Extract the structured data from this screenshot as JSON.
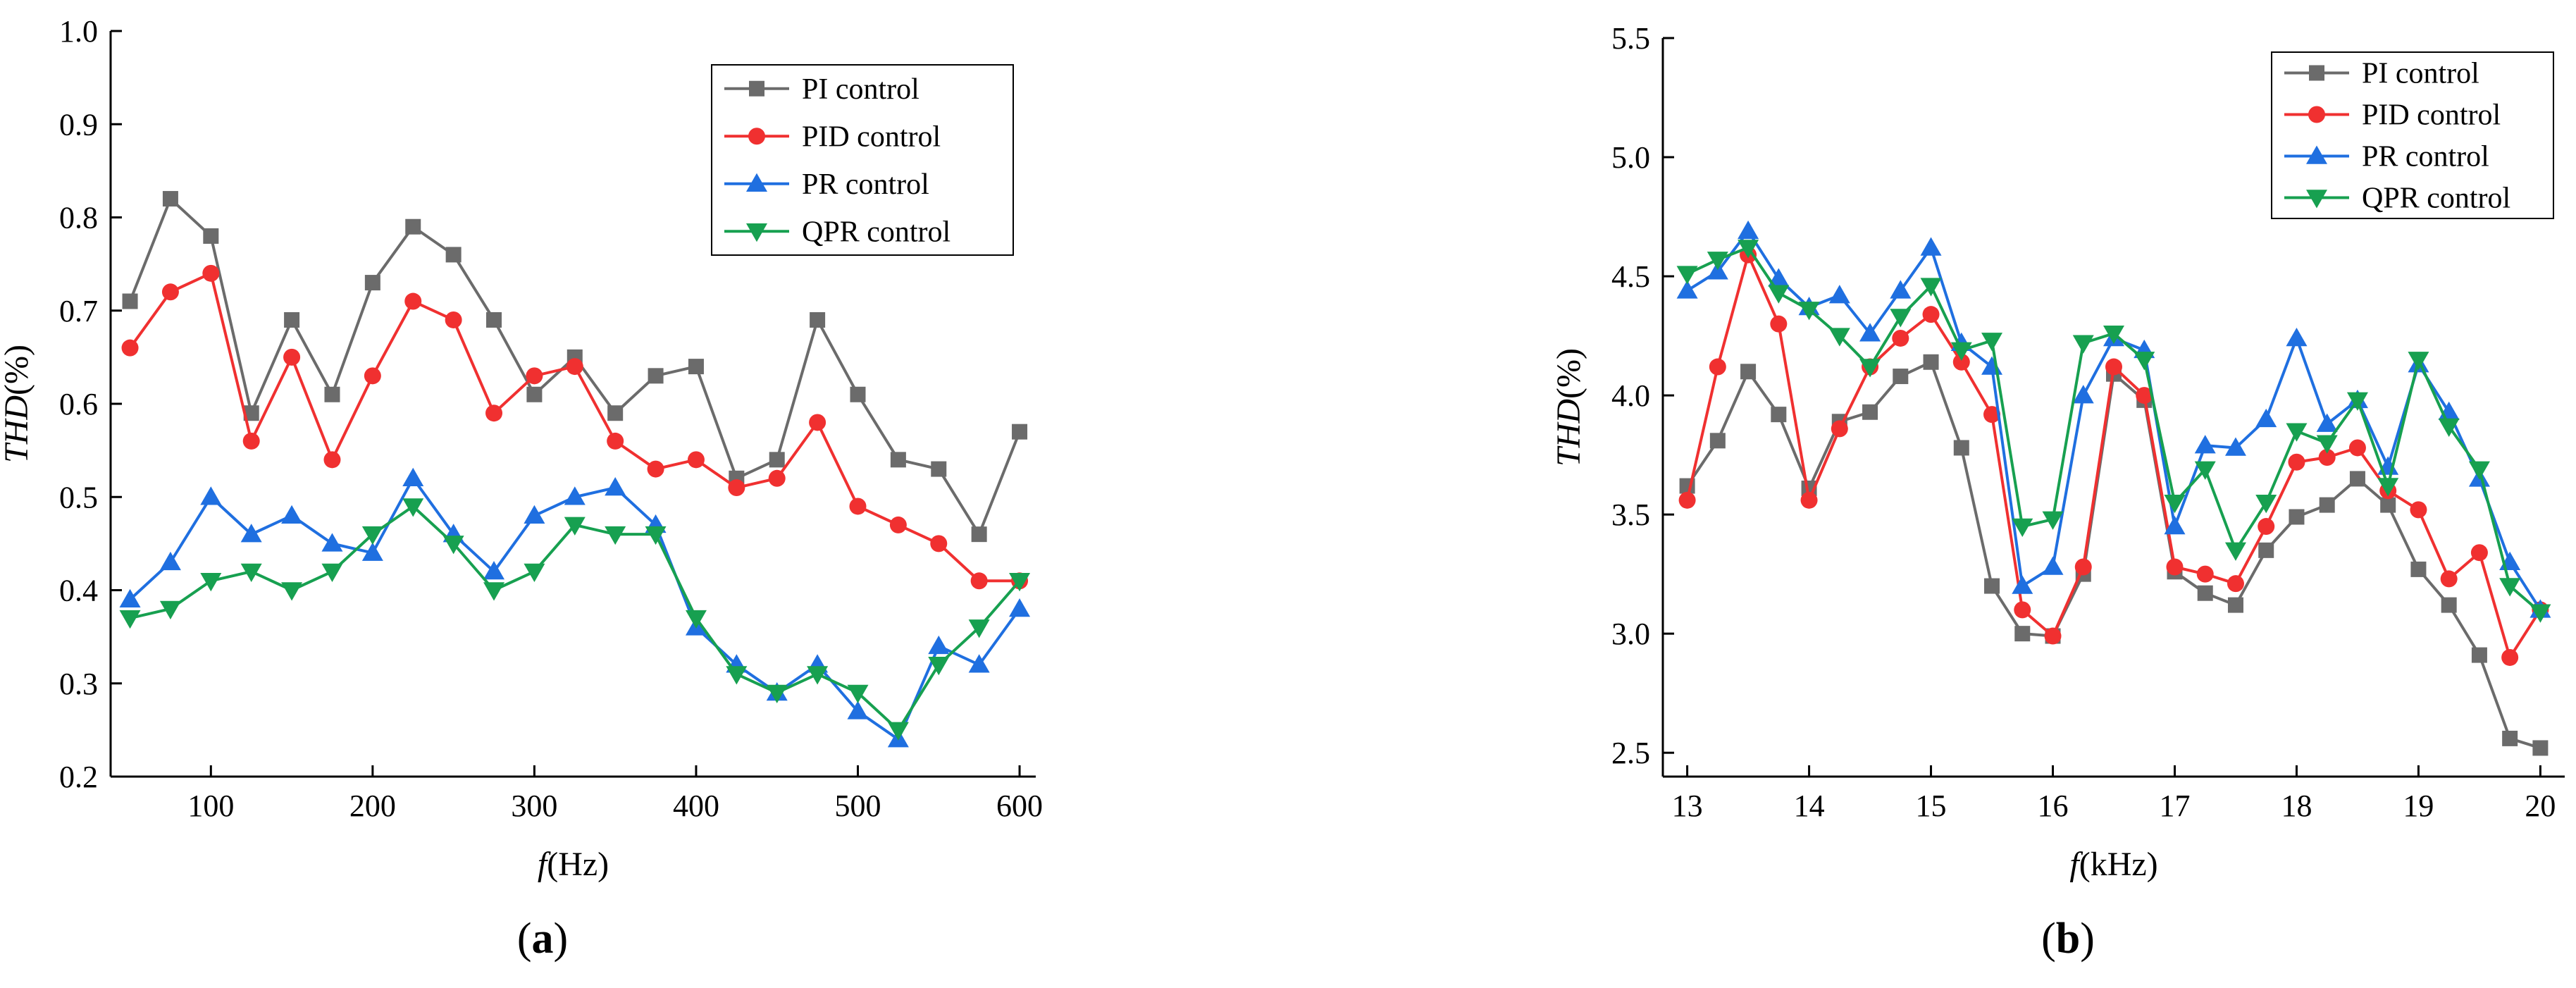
{
  "chart_data": [
    {
      "type": "line",
      "panel_label": "(a)",
      "panel_letter": "a",
      "xlabel": "f(Hz)",
      "xlabel_var": "f",
      "xlabel_unit": "(Hz)",
      "ylabel": "THD(%)",
      "ylabel_var": "THD",
      "ylabel_unit": "(%)",
      "xlim": [
        38,
        610
      ],
      "ylim": [
        0.2,
        1.0
      ],
      "xticks": [
        100,
        200,
        300,
        400,
        500,
        600
      ],
      "yticks": [
        0.2,
        0.3,
        0.4,
        0.5,
        0.6,
        0.7,
        0.8,
        0.9,
        1.0
      ],
      "legend_position": "top-right",
      "x": [
        50,
        75,
        100,
        125,
        150,
        175,
        200,
        225,
        250,
        275,
        300,
        325,
        350,
        375,
        400,
        425,
        450,
        475,
        500,
        525,
        550,
        575,
        600
      ],
      "series": [
        {
          "name": "PI control",
          "marker": "square",
          "color": "#6b6b6b",
          "values": [
            0.71,
            0.82,
            0.78,
            0.59,
            0.69,
            0.61,
            0.73,
            0.79,
            0.76,
            0.69,
            0.61,
            0.65,
            0.59,
            0.63,
            0.64,
            0.52,
            0.54,
            0.69,
            0.61,
            0.54,
            0.53,
            0.46,
            0.57
          ]
        },
        {
          "name": "PID control",
          "marker": "circle",
          "color": "#f03030",
          "values": [
            0.66,
            0.72,
            0.74,
            0.56,
            0.65,
            0.54,
            0.63,
            0.71,
            0.69,
            0.59,
            0.63,
            0.64,
            0.56,
            0.53,
            0.54,
            0.51,
            0.52,
            0.58,
            0.49,
            0.47,
            0.45,
            0.41,
            0.41
          ]
        },
        {
          "name": "PR control",
          "marker": "triangle-up",
          "color": "#1f6fe0",
          "values": [
            0.39,
            0.43,
            0.5,
            0.46,
            0.48,
            0.45,
            0.44,
            0.52,
            0.46,
            0.42,
            0.48,
            0.5,
            0.51,
            0.47,
            0.36,
            0.32,
            0.29,
            0.32,
            0.27,
            0.24,
            0.34,
            0.32,
            0.38
          ]
        },
        {
          "name": "QPR control",
          "marker": "triangle-down",
          "color": "#17a050",
          "values": [
            0.37,
            0.38,
            0.41,
            0.42,
            0.4,
            0.42,
            0.46,
            0.49,
            0.45,
            0.4,
            0.42,
            0.47,
            0.46,
            0.46,
            0.37,
            0.31,
            0.29,
            0.31,
            0.29,
            0.25,
            0.32,
            0.36,
            0.41
          ]
        }
      ]
    },
    {
      "type": "line",
      "panel_label": "(b)",
      "panel_letter": "b",
      "xlabel": "f(kHz)",
      "xlabel_var": "f",
      "xlabel_unit": "(kHz)",
      "ylabel": "THD(%)",
      "ylabel_var": "THD",
      "ylabel_unit": "(%)",
      "xlim": [
        12.8,
        20.2
      ],
      "ylim": [
        2.4,
        5.5
      ],
      "xticks": [
        13,
        14,
        15,
        16,
        17,
        18,
        19,
        20
      ],
      "yticks": [
        2.5,
        3.0,
        3.5,
        4.0,
        4.5,
        5.0,
        5.5
      ],
      "legend_position": "top-right",
      "x": [
        13,
        13.25,
        13.5,
        13.75,
        14,
        14.25,
        14.5,
        14.75,
        15,
        15.25,
        15.5,
        15.75,
        16,
        16.25,
        16.5,
        16.75,
        17,
        17.25,
        17.5,
        17.75,
        18,
        18.25,
        18.5,
        18.75,
        19,
        19.25,
        19.5,
        19.75,
        20
      ],
      "series": [
        {
          "name": "PI control",
          "marker": "square",
          "color": "#6b6b6b",
          "values": [
            3.62,
            3.81,
            4.1,
            3.92,
            3.61,
            3.89,
            3.93,
            4.08,
            4.14,
            3.78,
            3.2,
            3.0,
            2.99,
            3.25,
            4.09,
            3.98,
            3.26,
            3.17,
            3.12,
            3.35,
            3.49,
            3.54,
            3.65,
            3.54,
            3.27,
            3.12,
            2.91,
            2.56,
            2.52
          ]
        },
        {
          "name": "PID control",
          "marker": "circle",
          "color": "#f03030",
          "values": [
            3.56,
            4.12,
            4.59,
            4.3,
            3.56,
            3.86,
            4.12,
            4.24,
            4.34,
            4.14,
            3.92,
            3.1,
            2.99,
            3.28,
            4.12,
            4.0,
            3.28,
            3.25,
            3.21,
            3.45,
            3.72,
            3.74,
            3.78,
            3.6,
            3.52,
            3.23,
            3.34,
            2.9,
            3.1
          ]
        },
        {
          "name": "PR control",
          "marker": "triangle-up",
          "color": "#1f6fe0",
          "values": [
            4.44,
            4.52,
            4.69,
            4.49,
            4.37,
            4.42,
            4.26,
            4.44,
            4.62,
            4.22,
            4.12,
            3.2,
            3.28,
            4.0,
            4.24,
            4.19,
            3.45,
            3.79,
            3.78,
            3.9,
            4.24,
            3.88,
            3.98,
            3.7,
            4.13,
            3.93,
            3.65,
            3.3,
            3.1
          ]
        },
        {
          "name": "QPR control",
          "marker": "triangle-down",
          "color": "#17a050",
          "values": [
            4.51,
            4.57,
            4.62,
            4.43,
            4.36,
            4.25,
            4.12,
            4.33,
            4.46,
            4.19,
            4.23,
            3.45,
            3.48,
            4.22,
            4.26,
            4.15,
            3.55,
            3.69,
            3.35,
            3.55,
            3.85,
            3.8,
            3.98,
            3.62,
            4.15,
            3.87,
            3.69,
            3.2,
            3.09
          ]
        }
      ]
    }
  ]
}
